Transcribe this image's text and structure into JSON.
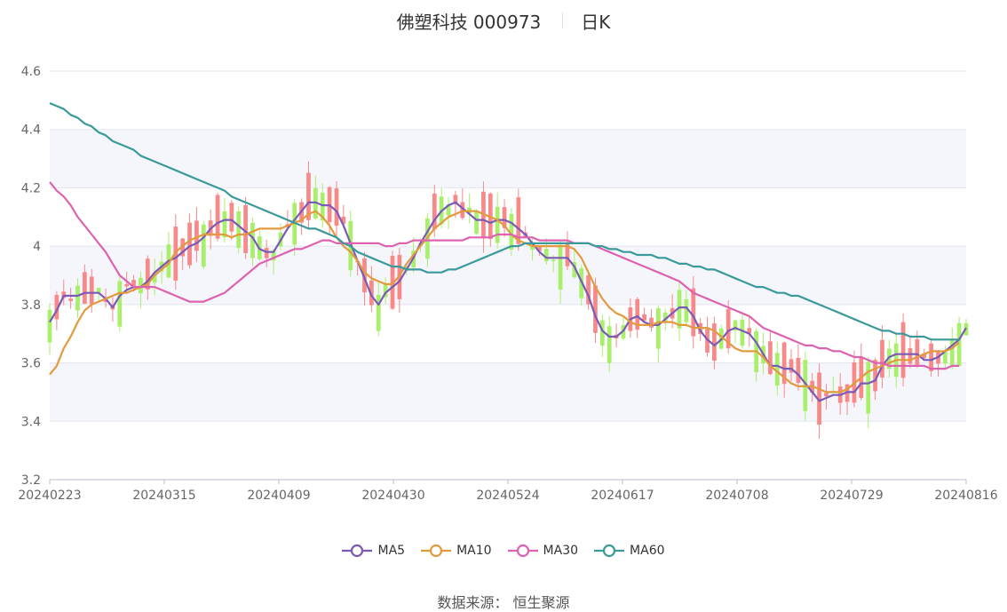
{
  "header": {
    "title": "佛塑科技 000973",
    "period": "日K"
  },
  "source": {
    "label": "数据来源：",
    "value": "恒生聚源"
  },
  "colors": {
    "up": "#f78989",
    "down": "#a8f06a",
    "ma5": "#7b5ab6",
    "ma10": "#e39a3e",
    "ma30": "#dd62b0",
    "ma60": "#3a9a99"
  },
  "chart_data": {
    "type": "candlestick",
    "title": "佛塑科技 000973 日K",
    "ylim": [
      3.2,
      4.6
    ],
    "yticks": [
      "3.2",
      "3.4",
      "3.6",
      "3.8",
      "4",
      "4.2",
      "4.4",
      "4.6"
    ],
    "xticks": [
      "20240223",
      "20240315",
      "20240409",
      "20240430",
      "20240524",
      "20240617",
      "20240708",
      "20240729",
      "20240816"
    ],
    "grid": true,
    "legend_position": "bottom",
    "series": [
      {
        "name": "MA5",
        "values": [
          3.74,
          3.78,
          3.83,
          3.83,
          3.83,
          3.84,
          3.84,
          3.84,
          3.82,
          3.79,
          3.83,
          3.85,
          3.86,
          3.86,
          3.88,
          3.91,
          3.93,
          3.95,
          3.96,
          3.98,
          4.0,
          4.01,
          4.03,
          4.06,
          4.08,
          4.09,
          4.09,
          4.07,
          4.05,
          4.03,
          3.99,
          3.98,
          3.98,
          4.02,
          4.06,
          4.09,
          4.12,
          4.15,
          4.15,
          4.14,
          4.14,
          4.12,
          4.07,
          4.01,
          3.95,
          3.89,
          3.83,
          3.8,
          3.84,
          3.86,
          3.88,
          3.92,
          3.96,
          4.01,
          4.05,
          4.09,
          4.12,
          4.14,
          4.15,
          4.13,
          4.11,
          4.09,
          4.09,
          4.08,
          4.09,
          4.09,
          4.08,
          4.06,
          4.04,
          4.01,
          3.98,
          3.96,
          3.96,
          3.96,
          3.96,
          3.93,
          3.88,
          3.83,
          3.76,
          3.71,
          3.69,
          3.69,
          3.71,
          3.75,
          3.76,
          3.74,
          3.73,
          3.73,
          3.75,
          3.77,
          3.79,
          3.79,
          3.76,
          3.71,
          3.68,
          3.66,
          3.68,
          3.71,
          3.72,
          3.71,
          3.7,
          3.67,
          3.63,
          3.59,
          3.59,
          3.58,
          3.58,
          3.56,
          3.53,
          3.5,
          3.47,
          3.48,
          3.49,
          3.49,
          3.5,
          3.5,
          3.53,
          3.53,
          3.54,
          3.59,
          3.62,
          3.63,
          3.63,
          3.63,
          3.63,
          3.61,
          3.61,
          3.62,
          3.64,
          3.66,
          3.68,
          3.72
        ]
      },
      {
        "name": "MA10",
        "values": [
          3.56,
          3.59,
          3.65,
          3.69,
          3.74,
          3.78,
          3.8,
          3.81,
          3.82,
          3.83,
          3.84,
          3.84,
          3.85,
          3.86,
          3.87,
          3.9,
          3.92,
          3.94,
          3.98,
          4.0,
          4.02,
          4.03,
          4.04,
          4.04,
          4.04,
          4.04,
          4.03,
          4.04,
          4.04,
          4.05,
          4.06,
          4.06,
          4.06,
          4.06,
          4.07,
          4.08,
          4.09,
          4.11,
          4.12,
          4.1,
          4.07,
          4.03,
          4.0,
          3.98,
          3.95,
          3.91,
          3.89,
          3.88,
          3.87,
          3.87,
          3.9,
          3.94,
          3.97,
          4.0,
          4.03,
          4.06,
          4.08,
          4.1,
          4.11,
          4.12,
          4.12,
          4.12,
          4.11,
          4.1,
          4.09,
          4.07,
          4.04,
          4.02,
          4.01,
          4.0,
          4.0,
          4.0,
          4.0,
          4.0,
          4.0,
          3.99,
          3.96,
          3.91,
          3.86,
          3.82,
          3.79,
          3.77,
          3.76,
          3.74,
          3.73,
          3.73,
          3.73,
          3.74,
          3.74,
          3.74,
          3.73,
          3.73,
          3.72,
          3.72,
          3.72,
          3.71,
          3.69,
          3.67,
          3.65,
          3.64,
          3.64,
          3.64,
          3.62,
          3.59,
          3.57,
          3.55,
          3.53,
          3.52,
          3.52,
          3.52,
          3.51,
          3.5,
          3.5,
          3.5,
          3.51,
          3.53,
          3.55,
          3.57,
          3.58,
          3.59,
          3.6,
          3.61,
          3.61,
          3.61,
          3.62,
          3.63,
          3.64,
          3.64,
          3.64,
          3.65,
          3.67
        ]
      },
      {
        "name": "MA30",
        "values": [
          4.22,
          4.19,
          4.17,
          4.14,
          4.1,
          4.07,
          4.04,
          4.01,
          3.98,
          3.94,
          3.9,
          3.88,
          3.86,
          3.86,
          3.86,
          3.86,
          3.85,
          3.84,
          3.83,
          3.82,
          3.81,
          3.81,
          3.81,
          3.82,
          3.83,
          3.84,
          3.86,
          3.88,
          3.9,
          3.92,
          3.94,
          3.95,
          3.96,
          3.97,
          3.98,
          3.99,
          3.99,
          4.0,
          4.01,
          4.02,
          4.02,
          4.01,
          4.01,
          4.01,
          4.01,
          4.01,
          4.01,
          4.01,
          4.0,
          4.0,
          4.01,
          4.01,
          4.02,
          4.02,
          4.02,
          4.02,
          4.02,
          4.02,
          4.02,
          4.02,
          4.03,
          4.03,
          4.03,
          4.03,
          4.04,
          4.04,
          4.04,
          4.03,
          4.03,
          4.03,
          4.02,
          4.02,
          4.02,
          4.02,
          4.02,
          4.01,
          4.01,
          4.01,
          4.0,
          3.99,
          3.98,
          3.97,
          3.96,
          3.95,
          3.94,
          3.93,
          3.92,
          3.91,
          3.9,
          3.89,
          3.88,
          3.86,
          3.84,
          3.83,
          3.82,
          3.81,
          3.8,
          3.79,
          3.78,
          3.77,
          3.76,
          3.74,
          3.72,
          3.71,
          3.7,
          3.69,
          3.68,
          3.67,
          3.66,
          3.66,
          3.65,
          3.65,
          3.64,
          3.64,
          3.63,
          3.62,
          3.62,
          3.61,
          3.6,
          3.6,
          3.59,
          3.59,
          3.59,
          3.59,
          3.59,
          3.59,
          3.58,
          3.58,
          3.58,
          3.59,
          3.59
        ]
      },
      {
        "name": "MA60",
        "values": [
          4.49,
          4.48,
          4.47,
          4.45,
          4.44,
          4.42,
          4.41,
          4.39,
          4.38,
          4.36,
          4.35,
          4.34,
          4.33,
          4.31,
          4.3,
          4.29,
          4.28,
          4.27,
          4.26,
          4.25,
          4.24,
          4.23,
          4.22,
          4.21,
          4.2,
          4.19,
          4.17,
          4.16,
          4.15,
          4.14,
          4.13,
          4.12,
          4.11,
          4.1,
          4.09,
          4.08,
          4.07,
          4.06,
          4.06,
          4.05,
          4.04,
          4.03,
          4.01,
          4.0,
          3.98,
          3.97,
          3.96,
          3.95,
          3.94,
          3.93,
          3.93,
          3.92,
          3.92,
          3.92,
          3.91,
          3.91,
          3.91,
          3.92,
          3.92,
          3.93,
          3.94,
          3.95,
          3.96,
          3.97,
          3.98,
          3.99,
          4.0,
          4.0,
          4.01,
          4.01,
          4.01,
          4.01,
          4.01,
          4.01,
          4.01,
          4.01,
          4.01,
          4.01,
          4.0,
          4.0,
          3.99,
          3.99,
          3.98,
          3.98,
          3.97,
          3.97,
          3.97,
          3.96,
          3.96,
          3.95,
          3.94,
          3.94,
          3.93,
          3.93,
          3.92,
          3.92,
          3.91,
          3.9,
          3.89,
          3.88,
          3.87,
          3.86,
          3.86,
          3.85,
          3.84,
          3.84,
          3.83,
          3.83,
          3.82,
          3.81,
          3.8,
          3.79,
          3.78,
          3.77,
          3.76,
          3.75,
          3.74,
          3.73,
          3.72,
          3.71,
          3.71,
          3.7,
          3.7,
          3.69,
          3.69,
          3.69,
          3.68,
          3.68,
          3.68,
          3.68,
          3.68
        ]
      }
    ]
  }
}
